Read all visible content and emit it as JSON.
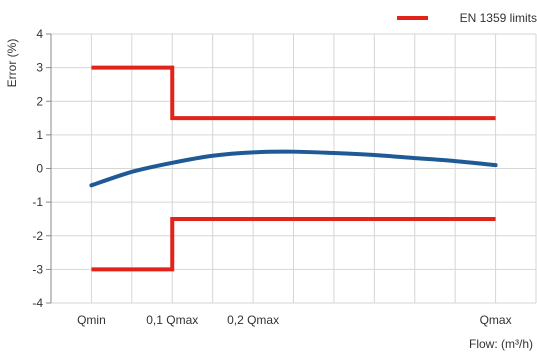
{
  "chart_data": {
    "type": "line",
    "title": "",
    "xlabel": "Flow: (m³/h)",
    "ylabel": "Error (%)",
    "ylim": [
      -4,
      4
    ],
    "xlim": [
      0,
      12
    ],
    "yticks": [
      -4,
      -3,
      -2,
      -1,
      0,
      1,
      2,
      3,
      4
    ],
    "ytick_labels": [
      "-4",
      "-3",
      "-2",
      "-1",
      "0",
      "1",
      "2",
      "3",
      "4"
    ],
    "xticks": [
      {
        "x": 1,
        "label": "Qmin"
      },
      {
        "x": 3,
        "label": "0,1 Qmax"
      },
      {
        "x": 5,
        "label": "0,2 Qmax"
      },
      {
        "x": 11,
        "label": "Qmax"
      }
    ],
    "grid": true,
    "legend": {
      "position": "top-right"
    },
    "series": [
      {
        "name": "EN 1359 limits",
        "color": "#e2231a",
        "segments": [
          [
            [
              1,
              3
            ],
            [
              3,
              3
            ],
            [
              3,
              1.5
            ],
            [
              11,
              1.5
            ]
          ],
          [
            [
              1,
              -3
            ],
            [
              3,
              -3
            ],
            [
              3,
              -1.5
            ],
            [
              11,
              -1.5
            ]
          ]
        ]
      },
      {
        "name": "",
        "color": "#1f5a96",
        "x": [
          1,
          2,
          3,
          4,
          5,
          6,
          7,
          8,
          9,
          10,
          11
        ],
        "y": [
          -0.5,
          -0.1,
          0.17,
          0.38,
          0.48,
          0.5,
          0.46,
          0.4,
          0.31,
          0.22,
          0.1
        ]
      }
    ]
  }
}
